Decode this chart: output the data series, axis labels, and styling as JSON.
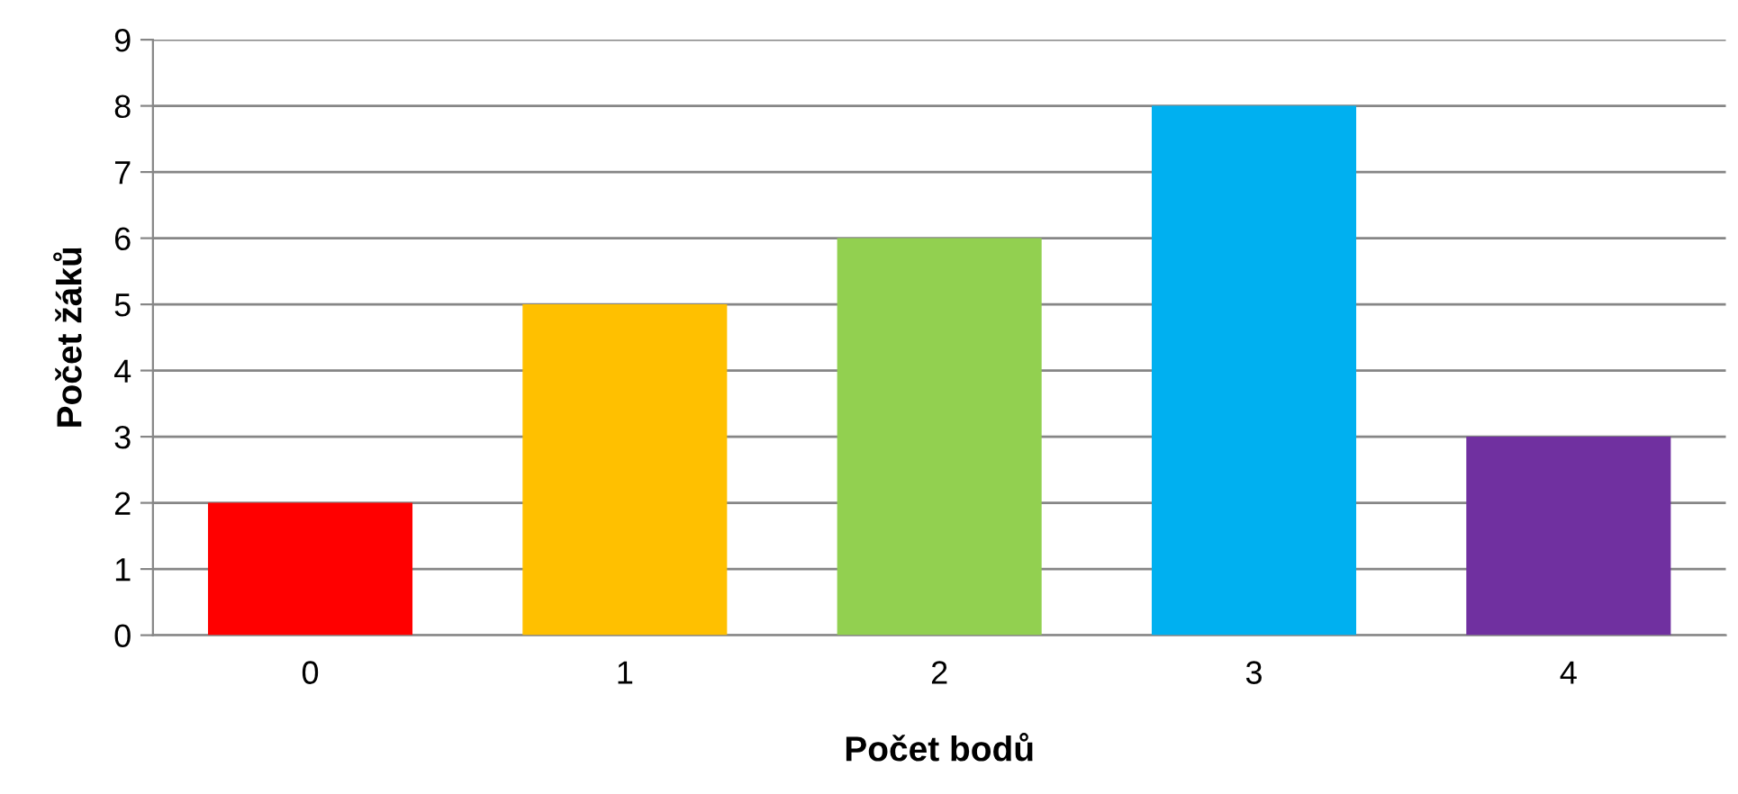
{
  "chart_data": {
    "type": "bar",
    "xlabel": "Počet bodů",
    "ylabel": "Počet žáků",
    "categories": [
      "0",
      "1",
      "2",
      "3",
      "4"
    ],
    "values": [
      2,
      5,
      6,
      8,
      3
    ],
    "colors": [
      "#ff0000",
      "#ffc000",
      "#92d050",
      "#00b0f0",
      "#7030a0"
    ],
    "ylim": [
      0,
      9
    ],
    "yticks": [
      0,
      1,
      2,
      3,
      4,
      5,
      6,
      7,
      8,
      9
    ],
    "grid": "y",
    "legend": false
  }
}
